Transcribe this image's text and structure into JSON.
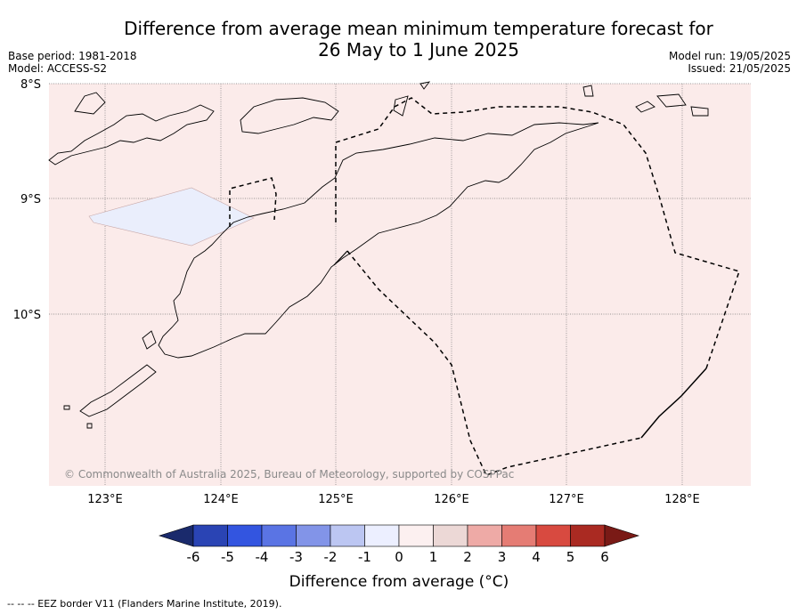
{
  "title_line1": "Difference from average mean minimum temperature forecast for",
  "title_line2": "26 May to 1 June 2025",
  "base_period": "Base period: 1981-2018",
  "model": "Model: ACCESS-S2",
  "model_run": "Model run: 19/05/2025",
  "issued": "Issued: 21/05/2025",
  "copyright": "© Commonwealth of Australia 2025, Bureau of Meteorology, supported by COSPPac",
  "lat_labels": [
    "8°S",
    "9°S",
    "10°S"
  ],
  "lon_labels": [
    "123°E",
    "124°E",
    "125°E",
    "126°E",
    "127°E",
    "128°E"
  ],
  "colorbar": {
    "ticks": [
      "-6",
      "-5",
      "-4",
      "-3",
      "-2",
      "-1",
      "0",
      "1",
      "2",
      "3",
      "4",
      "5",
      "6"
    ],
    "colors": [
      "#1a2a6c",
      "#2a44b4",
      "#3355e0",
      "#5a74e4",
      "#8294e8",
      "#bcc6f2",
      "#ecefff",
      "#fcf0f0",
      "#ecd8d6",
      "#eeaaa6",
      "#e57c74",
      "#d84a40",
      "#aa2a22",
      "#7a1a16"
    ],
    "label": "Difference from average (°C)"
  },
  "legend_note": "--  --  -- EEZ border V11 (Flanders Marine Institute, 2019).",
  "colors": {
    "background_anomaly": "#fbebea",
    "cool_patch": "#eaeefc"
  }
}
